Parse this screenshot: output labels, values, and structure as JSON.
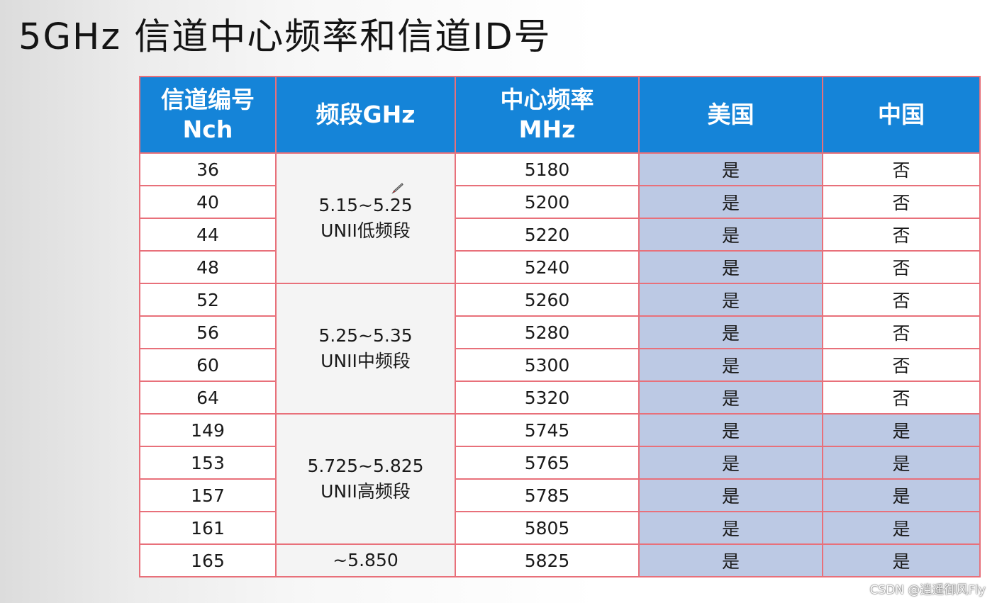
{
  "title": "5GHz 信道中心频率和信道ID号",
  "table": {
    "headers": [
      "信道编号\nNch",
      "频段GHz",
      "中心频率\nMHz",
      "美国",
      "中国"
    ],
    "bands": [
      {
        "line1": "5.15~5.25",
        "line2": "UNII低频段"
      },
      {
        "line1": "5.25~5.35",
        "line2": "UNII中频段"
      },
      {
        "line1": "5.725~5.825",
        "line2": "UNII高频段"
      },
      {
        "line1": "~5.850",
        "line2": ""
      }
    ],
    "rows": [
      {
        "nch": "36",
        "freq": "5180",
        "us": "是",
        "cn": "否"
      },
      {
        "nch": "40",
        "freq": "5200",
        "us": "是",
        "cn": "否"
      },
      {
        "nch": "44",
        "freq": "5220",
        "us": "是",
        "cn": "否"
      },
      {
        "nch": "48",
        "freq": "5240",
        "us": "是",
        "cn": "否"
      },
      {
        "nch": "52",
        "freq": "5260",
        "us": "是",
        "cn": "否"
      },
      {
        "nch": "56",
        "freq": "5280",
        "us": "是",
        "cn": "否"
      },
      {
        "nch": "60",
        "freq": "5300",
        "us": "是",
        "cn": "否"
      },
      {
        "nch": "64",
        "freq": "5320",
        "us": "是",
        "cn": "否"
      },
      {
        "nch": "149",
        "freq": "5745",
        "us": "是",
        "cn": "是"
      },
      {
        "nch": "153",
        "freq": "5765",
        "us": "是",
        "cn": "是"
      },
      {
        "nch": "157",
        "freq": "5785",
        "us": "是",
        "cn": "是"
      },
      {
        "nch": "161",
        "freq": "5805",
        "us": "是",
        "cn": "是"
      },
      {
        "nch": "165",
        "freq": "5825",
        "us": "是",
        "cn": "是"
      }
    ]
  },
  "watermark": "CSDN @逍遥御风Fly",
  "colors": {
    "header_bg": "#1584d8",
    "border": "#e8707a",
    "highlight": "#bcc9e4"
  },
  "icons": {
    "cursor": "pen-cursor-icon"
  }
}
